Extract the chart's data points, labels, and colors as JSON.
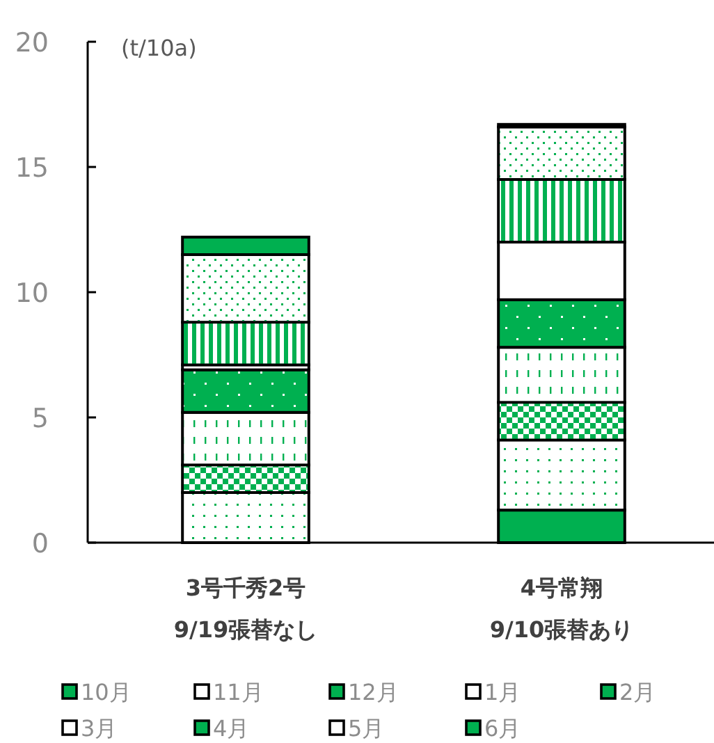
{
  "chart_data": {
    "type": "bar",
    "stacked": true,
    "ylabel": "(t/10a)",
    "categories": [
      "3号千秀2号\n9/19張替なし",
      "4号常翔\n9/10張替あり"
    ],
    "ylim": [
      0,
      20
    ],
    "yticks": [
      0,
      5,
      10,
      15,
      20
    ],
    "grid": false,
    "legend": "bottom",
    "series": [
      {
        "name": "10月",
        "color": "#00b050",
        "values": [
          0,
          1.3
        ]
      },
      {
        "name": "11月",
        "color": "#ffffff",
        "values": [
          2.0,
          2.8
        ]
      },
      {
        "name": "12月",
        "color": "#00b050",
        "values": [
          1.1,
          1.5
        ]
      },
      {
        "name": "1月",
        "color": "#ffffff",
        "values": [
          2.1,
          2.2
        ]
      },
      {
        "name": "2月",
        "color": "#00b050",
        "values": [
          1.7,
          1.9
        ]
      },
      {
        "name": "3月",
        "color": "#ffffff",
        "values": [
          0.2,
          2.3
        ]
      },
      {
        "name": "4月",
        "color": "#00b050",
        "values": [
          1.7,
          2.5
        ]
      },
      {
        "name": "5月",
        "color": "#ffffff",
        "values": [
          2.7,
          2.1
        ]
      },
      {
        "name": "6月",
        "color": "#00b050",
        "values": [
          0.7,
          0.1
        ]
      }
    ]
  }
}
